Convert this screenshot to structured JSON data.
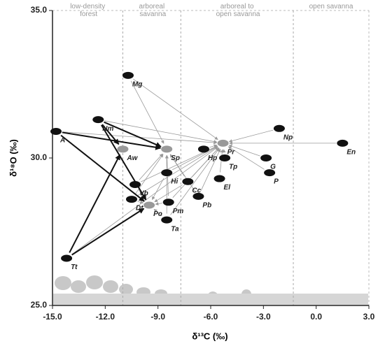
{
  "chart_data": {
    "type": "scatter",
    "x_label": "δ¹³C (‰)",
    "y_label": "δ¹⁸O (‰)",
    "xlim": [
      -15,
      3
    ],
    "ylim": [
      25,
      35
    ],
    "xticks": [
      {
        "value": -15,
        "label": "-15.0"
      },
      {
        "value": -12,
        "label": "-12.0"
      },
      {
        "value": -9,
        "label": "-9.0"
      },
      {
        "value": -6,
        "label": "-6.0"
      },
      {
        "value": -3,
        "label": "-3.0"
      },
      {
        "value": 0,
        "label": "0.0"
      },
      {
        "value": 3,
        "label": "3.0"
      }
    ],
    "yticks": [
      {
        "value": 25,
        "label": "25.0"
      },
      {
        "value": 30,
        "label": "30.0"
      },
      {
        "value": 35,
        "label": "35.0"
      }
    ],
    "zones": [
      {
        "label": "low-density forest",
        "from": -15,
        "to": -11.0
      },
      {
        "label": "arboreal savanna",
        "from": -11.0,
        "to": -7.7
      },
      {
        "label": "arboreal to open savanna",
        "from": -7.7,
        "to": -1.3
      },
      {
        "label": "open savanna",
        "from": -1.3,
        "to": 3
      }
    ],
    "points": [
      {
        "label": "Mg",
        "x": -10.7,
        "y": 32.8,
        "color": "#111"
      },
      {
        "label": "Nm",
        "x": -12.4,
        "y": 31.3,
        "color": "#111"
      },
      {
        "label": "A",
        "x": -14.8,
        "y": 30.9,
        "color": "#111"
      },
      {
        "label": "Aw",
        "x": -11.0,
        "y": 30.3,
        "color": "#999"
      },
      {
        "label": "Sp",
        "x": -8.5,
        "y": 30.3,
        "color": "#999"
      },
      {
        "label": "Pr",
        "x": -5.3,
        "y": 30.5,
        "color": "#999"
      },
      {
        "label": "Np",
        "x": -2.1,
        "y": 31.0,
        "color": "#111"
      },
      {
        "label": "En",
        "x": 1.5,
        "y": 30.5,
        "color": "#111"
      },
      {
        "label": "Hp",
        "x": -6.4,
        "y": 30.3,
        "color": "#111"
      },
      {
        "label": "Tp",
        "x": -5.2,
        "y": 30.0,
        "color": "#111"
      },
      {
        "label": "G",
        "x": -2.85,
        "y": 30.0,
        "color": "#111"
      },
      {
        "label": "P",
        "x": -2.65,
        "y": 29.5,
        "color": "#111"
      },
      {
        "label": "Hi",
        "x": -8.5,
        "y": 29.5,
        "color": "#111"
      },
      {
        "label": "Vb",
        "x": -10.3,
        "y": 29.1,
        "color": "#111"
      },
      {
        "label": "Cc",
        "x": -7.3,
        "y": 29.2,
        "color": "#111"
      },
      {
        "label": "El",
        "x": -5.5,
        "y": 29.3,
        "color": "#111"
      },
      {
        "label": "Pb",
        "x": -6.7,
        "y": 28.7,
        "color": "#111"
      },
      {
        "label": "Dt",
        "x": -10.5,
        "y": 28.6,
        "color": "#111"
      },
      {
        "label": "Po",
        "x": -9.5,
        "y": 28.4,
        "color": "#999"
      },
      {
        "label": "Pm",
        "x": -8.4,
        "y": 28.5,
        "color": "#111"
      },
      {
        "label": "Ta",
        "x": -8.5,
        "y": 27.9,
        "color": "#111"
      },
      {
        "label": "Tt",
        "x": -14.2,
        "y": 26.6,
        "color": "#111"
      }
    ],
    "strong_links": [
      [
        1,
        3
      ],
      [
        1,
        4
      ],
      [
        1,
        18
      ],
      [
        2,
        4
      ],
      [
        2,
        18
      ],
      [
        21,
        3
      ],
      [
        21,
        18
      ]
    ],
    "weak_links": [
      [
        0,
        4
      ],
      [
        0,
        5
      ],
      [
        1,
        5
      ],
      [
        2,
        5
      ],
      [
        6,
        5
      ],
      [
        7,
        5
      ],
      [
        10,
        5
      ],
      [
        11,
        5
      ],
      [
        8,
        5
      ],
      [
        9,
        5
      ],
      [
        12,
        5
      ],
      [
        13,
        5
      ],
      [
        14,
        5
      ],
      [
        15,
        5
      ],
      [
        16,
        5
      ],
      [
        17,
        5
      ],
      [
        19,
        5
      ],
      [
        20,
        5
      ],
      [
        12,
        4
      ],
      [
        13,
        4
      ],
      [
        14,
        4
      ],
      [
        19,
        4
      ],
      [
        20,
        4
      ],
      [
        16,
        4
      ],
      [
        17,
        4
      ],
      [
        17,
        18
      ],
      [
        13,
        18
      ],
      [
        12,
        18
      ],
      [
        14,
        18
      ],
      [
        19,
        18
      ],
      [
        20,
        18
      ],
      [
        21,
        5
      ]
    ]
  }
}
